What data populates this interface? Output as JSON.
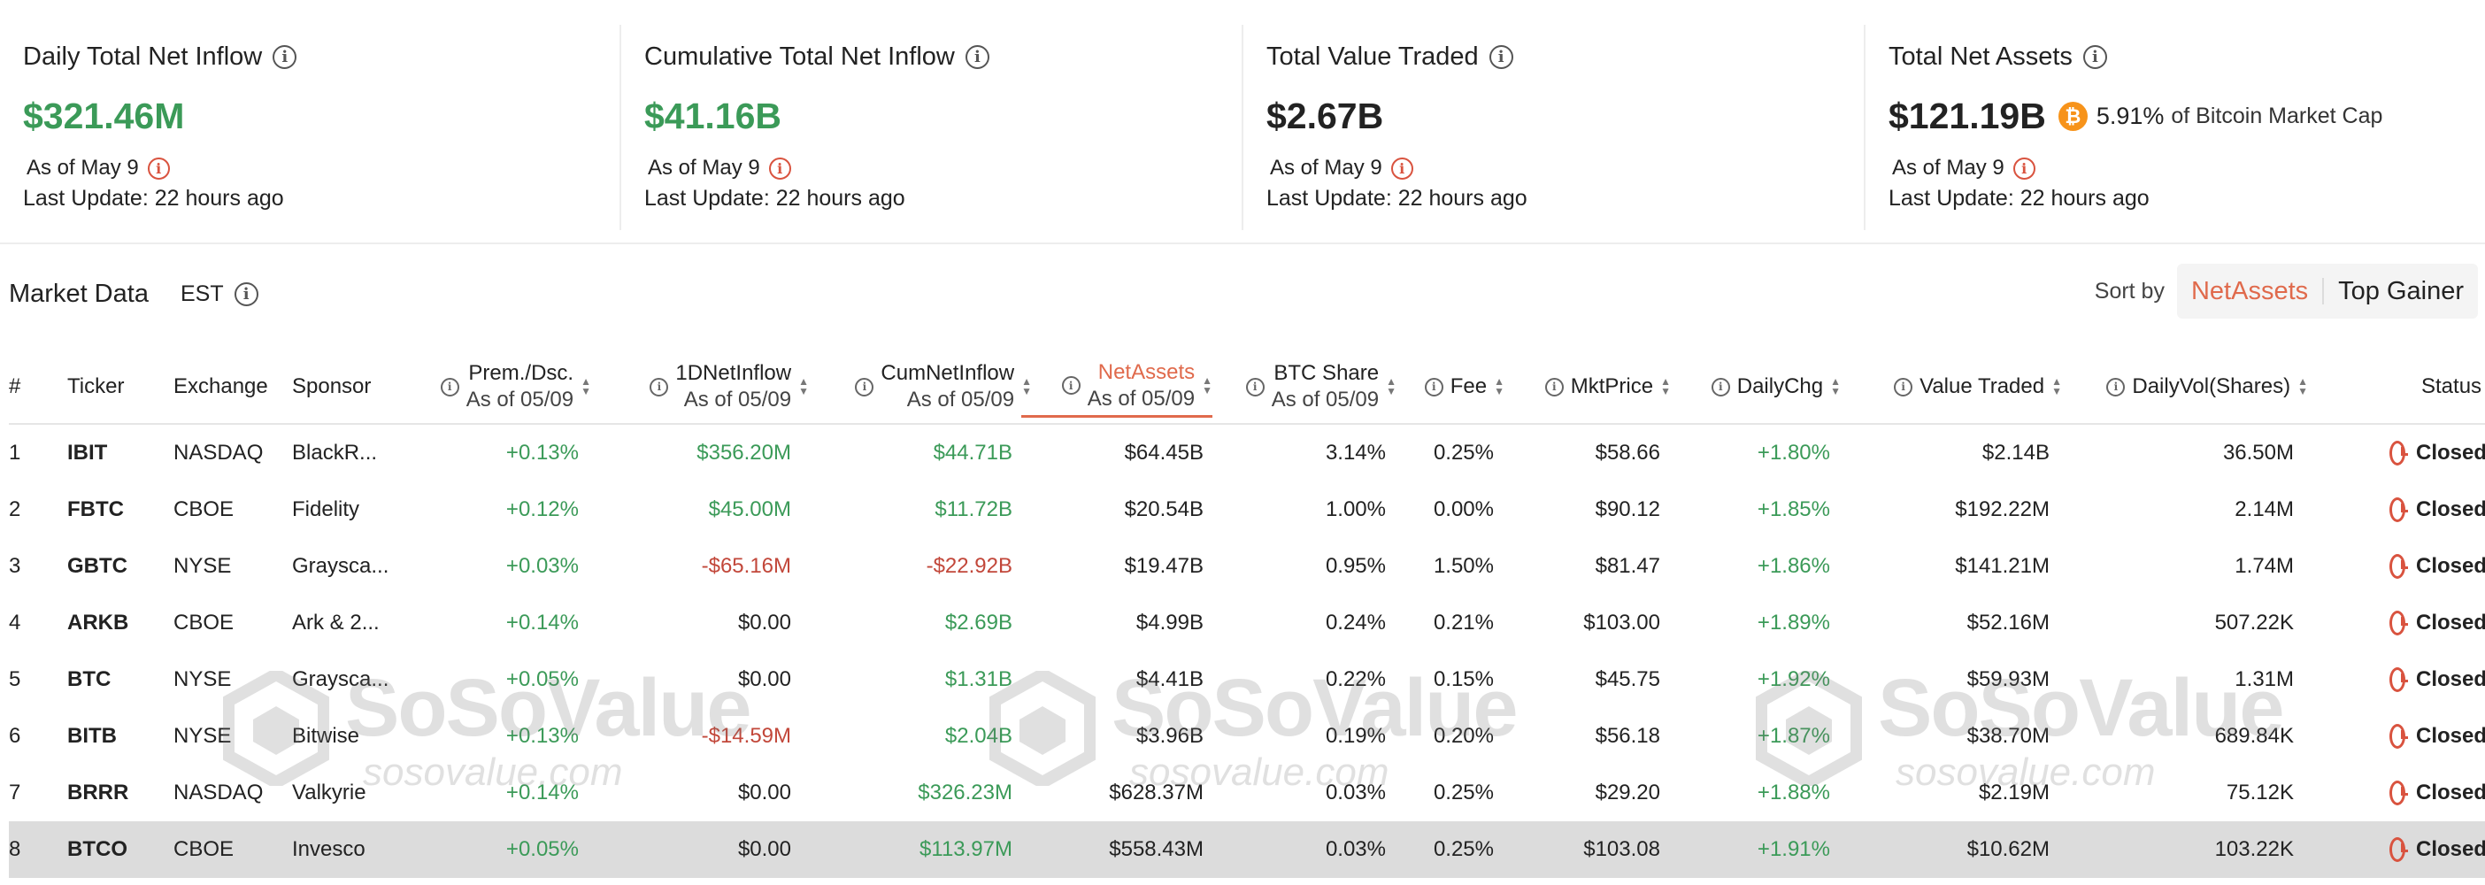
{
  "cards": [
    {
      "title": "Daily Total Net Inflow",
      "value": "$321.46M",
      "value_color": "#3b9a58",
      "asof": "As of May 9",
      "update": "Last Update: 22 hours ago"
    },
    {
      "title": "Cumulative Total Net Inflow",
      "value": "$41.16B",
      "value_color": "#3b9a58",
      "asof": "As of May 9",
      "update": "Last Update: 22 hours ago"
    },
    {
      "title": "Total Value Traded",
      "value": "$2.67B",
      "value_color": "#222222",
      "asof": "As of May 9",
      "update": "Last Update: 22 hours ago"
    },
    {
      "title": "Total Net Assets",
      "value": "$121.19B",
      "value_color": "#222222",
      "btc_icon": "₿",
      "market_cap_pct": "5.91%",
      "market_cap_text": "of Bitcoin Market Cap",
      "asof": "As of May 9",
      "update": "Last Update: 22 hours ago"
    }
  ],
  "market": {
    "title": "Market Data",
    "timezone": "EST",
    "sort_label": "Sort by",
    "sort_options": [
      "NetAssets",
      "Top Gainer"
    ],
    "sort_active": "NetAssets"
  },
  "columns": {
    "num": "#",
    "ticker": "Ticker",
    "exchange": "Exchange",
    "sponsor": "Sponsor",
    "prem": {
      "label": "Prem./Dsc.",
      "sub": "As of 05/09"
    },
    "inflow1d": {
      "label": "1DNetInflow",
      "sub": "As of 05/09"
    },
    "cuminflow": {
      "label": "CumNetInflow",
      "sub": "As of 05/09"
    },
    "netassets": {
      "label": "NetAssets",
      "sub": "As of 05/09"
    },
    "btcshare": {
      "label": "BTC Share",
      "sub": "As of 05/09"
    },
    "fee": "Fee",
    "mktprice": "MktPrice",
    "dailychg": "DailyChg",
    "valuetraded": "Value Traded",
    "dailyvol": "DailyVol(Shares)",
    "status": "Status"
  },
  "rows": [
    {
      "num": "1",
      "ticker": "IBIT",
      "exchange": "NASDAQ",
      "sponsor": "BlackR...",
      "prem": "+0.13%",
      "inflow1d": "$356.20M",
      "cuminflow": "$44.71B",
      "netassets": "$64.45B",
      "btcshare": "3.14%",
      "fee": "0.25%",
      "mktprice": "$58.66",
      "dailychg": "+1.80%",
      "valuetraded": "$2.14B",
      "dailyvol": "36.50M",
      "status": "Closed"
    },
    {
      "num": "2",
      "ticker": "FBTC",
      "exchange": "CBOE",
      "sponsor": "Fidelity",
      "prem": "+0.12%",
      "inflow1d": "$45.00M",
      "cuminflow": "$11.72B",
      "netassets": "$20.54B",
      "btcshare": "1.00%",
      "fee": "0.00%",
      "mktprice": "$90.12",
      "dailychg": "+1.85%",
      "valuetraded": "$192.22M",
      "dailyvol": "2.14M",
      "status": "Closed"
    },
    {
      "num": "3",
      "ticker": "GBTC",
      "exchange": "NYSE",
      "sponsor": "Graysca...",
      "prem": "+0.03%",
      "inflow1d": "-$65.16M",
      "cuminflow": "-$22.92B",
      "netassets": "$19.47B",
      "btcshare": "0.95%",
      "fee": "1.50%",
      "mktprice": "$81.47",
      "dailychg": "+1.86%",
      "valuetraded": "$141.21M",
      "dailyvol": "1.74M",
      "status": "Closed"
    },
    {
      "num": "4",
      "ticker": "ARKB",
      "exchange": "CBOE",
      "sponsor": "Ark & 2...",
      "prem": "+0.14%",
      "inflow1d": "$0.00",
      "cuminflow": "$2.69B",
      "netassets": "$4.99B",
      "btcshare": "0.24%",
      "fee": "0.21%",
      "mktprice": "$103.00",
      "dailychg": "+1.89%",
      "valuetraded": "$52.16M",
      "dailyvol": "507.22K",
      "status": "Closed"
    },
    {
      "num": "5",
      "ticker": "BTC",
      "exchange": "NYSE",
      "sponsor": "Graysca...",
      "prem": "+0.05%",
      "inflow1d": "$0.00",
      "cuminflow": "$1.31B",
      "netassets": "$4.41B",
      "btcshare": "0.22%",
      "fee": "0.15%",
      "mktprice": "$45.75",
      "dailychg": "+1.92%",
      "valuetraded": "$59.93M",
      "dailyvol": "1.31M",
      "status": "Closed"
    },
    {
      "num": "6",
      "ticker": "BITB",
      "exchange": "NYSE",
      "sponsor": "Bitwise",
      "prem": "+0.13%",
      "inflow1d": "-$14.59M",
      "cuminflow": "$2.04B",
      "netassets": "$3.96B",
      "btcshare": "0.19%",
      "fee": "0.20%",
      "mktprice": "$56.18",
      "dailychg": "+1.87%",
      "valuetraded": "$38.70M",
      "dailyvol": "689.84K",
      "status": "Closed"
    },
    {
      "num": "7",
      "ticker": "BRRR",
      "exchange": "NASDAQ",
      "sponsor": "Valkyrie",
      "prem": "+0.14%",
      "inflow1d": "$0.00",
      "cuminflow": "$326.23M",
      "netassets": "$628.37M",
      "btcshare": "0.03%",
      "fee": "0.25%",
      "mktprice": "$29.20",
      "dailychg": "+1.88%",
      "valuetraded": "$2.19M",
      "dailyvol": "75.12K",
      "status": "Closed"
    },
    {
      "num": "8",
      "ticker": "BTCO",
      "exchange": "CBOE",
      "sponsor": "Invesco",
      "prem": "+0.05%",
      "inflow1d": "$0.00",
      "cuminflow": "$113.97M",
      "netassets": "$558.43M",
      "btcshare": "0.03%",
      "fee": "0.25%",
      "mktprice": "$103.08",
      "dailychg": "+1.91%",
      "valuetraded": "$10.62M",
      "dailyvol": "103.22K",
      "status": "Closed"
    }
  ],
  "watermark": {
    "brand": "SoSoValue",
    "url": "sosovalue.com"
  },
  "colors": {
    "positive": "#3b9a58",
    "negative": "#c2473a",
    "accent": "#e06a4c",
    "closed_icon": "#d9533f",
    "highlight_row": "#dcdcdc"
  }
}
